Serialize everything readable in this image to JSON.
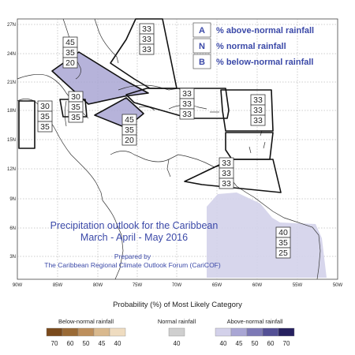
{
  "map": {
    "lat_labels": [
      "27N",
      "24N",
      "21N",
      "18N",
      "15N",
      "12N",
      "9N",
      "6N",
      "3N"
    ],
    "lon_labels": [
      "90W",
      "85W",
      "80W",
      "75W",
      "70W",
      "65W",
      "60W",
      "55W",
      "50W"
    ],
    "regions": [
      {
        "name": "gulf",
        "values": [
          "45",
          "35",
          "20"
        ]
      },
      {
        "name": "bahamas",
        "values": [
          "33",
          "33",
          "33"
        ]
      },
      {
        "name": "western-caribbean",
        "values": [
          "30",
          "35",
          "35"
        ]
      },
      {
        "name": "central-america",
        "values": [
          "30",
          "35",
          "35"
        ]
      },
      {
        "name": "jamaica-sea",
        "values": [
          "45",
          "35",
          "20"
        ]
      },
      {
        "name": "hispaniola-pr",
        "values": [
          "33",
          "33",
          "33"
        ]
      },
      {
        "name": "lesser-antilles-north",
        "values": [
          "33",
          "33",
          "33"
        ]
      },
      {
        "name": "windward-islands",
        "values": [
          "33",
          "33",
          "33"
        ]
      },
      {
        "name": "guianas",
        "values": [
          "40",
          "35",
          "25"
        ]
      }
    ],
    "category_key": {
      "rows": [
        {
          "letter": "A",
          "label": "% above-normal rainfall"
        },
        {
          "letter": "N",
          "label": "% normal rainfall"
        },
        {
          "letter": "B",
          "label": "% below-normal rainfall"
        }
      ]
    },
    "title_line1": "Precipitation outlook for the Caribbean",
    "title_line2": "March - April - May 2016",
    "prepared_by": "Prepared by",
    "forum": "The Caribbean Regional Climate Outlook Forum (CariCOF)"
  },
  "legend": {
    "title": "Probability (%) of Most Likely Category",
    "below": {
      "label": "Below-normal rainfall",
      "ticks": [
        "70",
        "60",
        "50",
        "45",
        "40"
      ],
      "colors": [
        "#7a4a1c",
        "#9a6a35",
        "#bd8f5c",
        "#d9b98e",
        "#efdcc0"
      ]
    },
    "normal": {
      "label": "Normal rainfall",
      "ticks": [
        "40"
      ],
      "colors": [
        "#cfcfcf"
      ]
    },
    "above": {
      "label": "Above-normal rainfall",
      "ticks": [
        "40",
        "45",
        "50",
        "60",
        "70"
      ],
      "colors": [
        "#d3d1ea",
        "#a9a6d4",
        "#7d79b6",
        "#545096",
        "#26205f"
      ]
    }
  }
}
